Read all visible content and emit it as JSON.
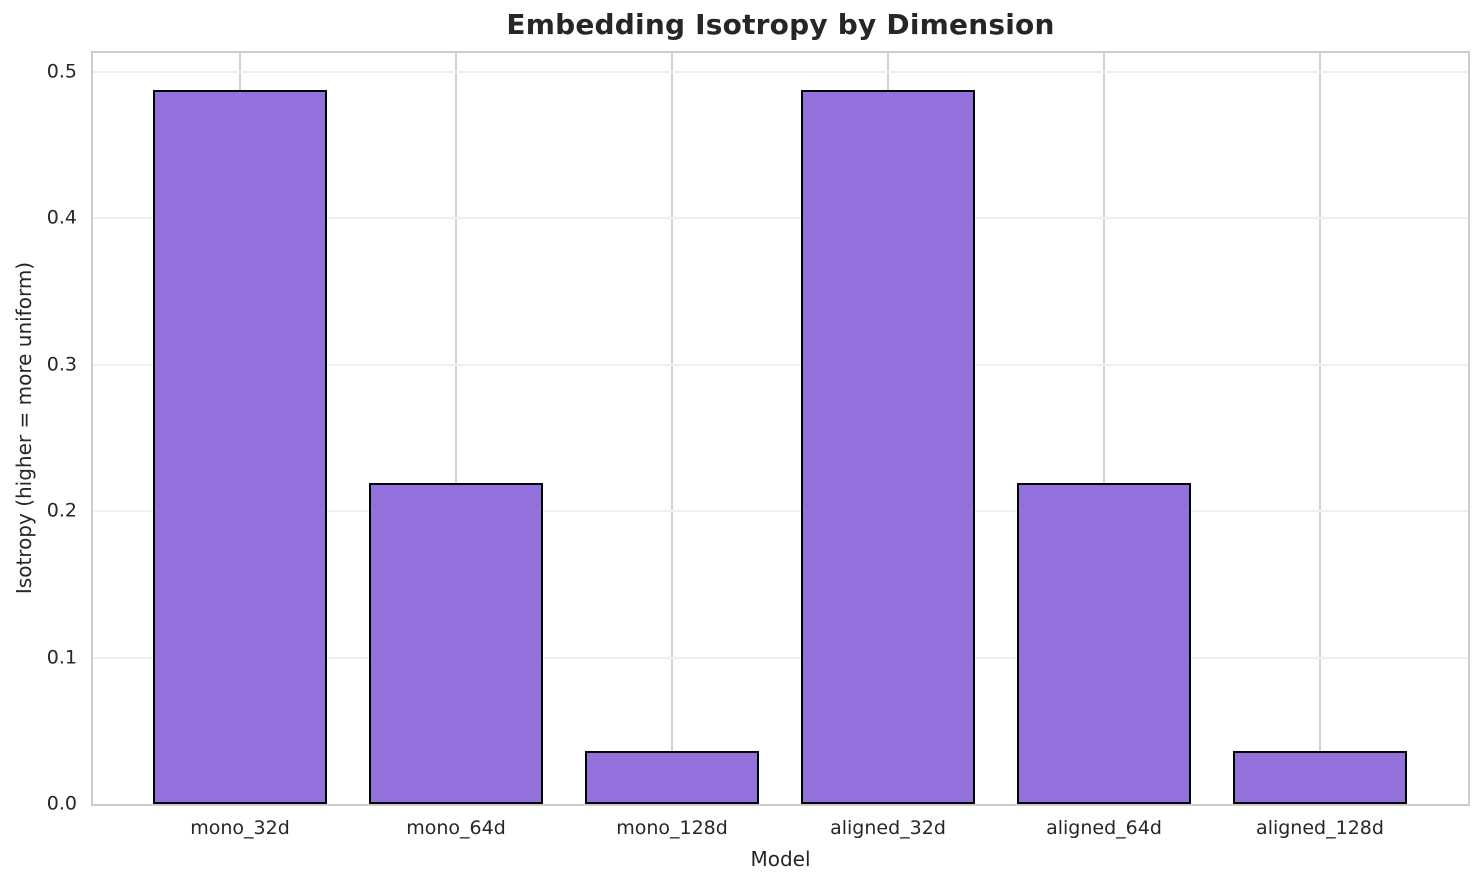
{
  "chart_data": {
    "type": "bar",
    "title": "Embedding Isotropy by Dimension",
    "xlabel": "Model",
    "ylabel": "Isotropy (higher = more uniform)",
    "categories": [
      "mono_32d",
      "mono_64d",
      "mono_128d",
      "aligned_32d",
      "aligned_64d",
      "aligned_128d"
    ],
    "values": [
      0.488,
      0.219,
      0.036,
      0.488,
      0.219,
      0.036
    ],
    "ylim": [
      0,
      0.513
    ],
    "yticks": [
      0.0,
      0.1,
      0.2,
      0.3,
      0.4,
      0.5
    ],
    "ytick_labels": [
      "0.0",
      "0.1",
      "0.2",
      "0.3",
      "0.4",
      "0.5"
    ],
    "grid": true,
    "legend": false,
    "colors": {
      "bar_fill": "#9370DB",
      "bar_edge": "#000000",
      "grid_horizontal": "#efefef",
      "grid_vertical": "#d2d2d2",
      "spine": "#cdcdcd",
      "text": "#262626"
    }
  }
}
